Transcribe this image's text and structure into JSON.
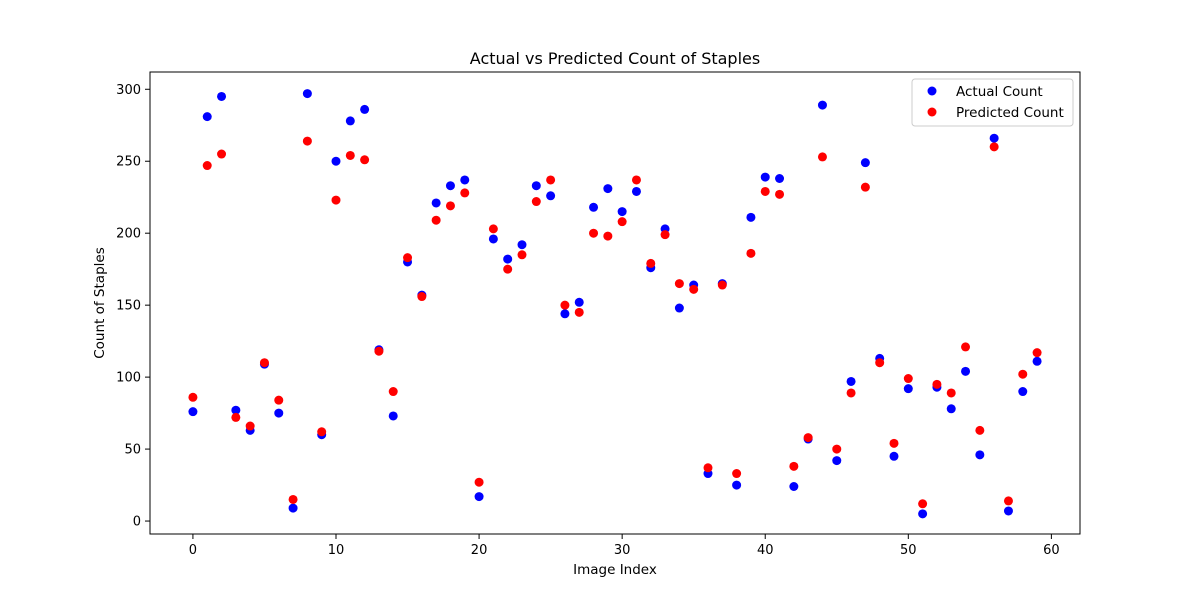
{
  "chart_data": {
    "type": "scatter",
    "title": "Actual vs Predicted Count of Staples",
    "xlabel": "Image Index",
    "ylabel": "Count of Staples",
    "xlim": [
      -3,
      62
    ],
    "ylim": [
      -9,
      312
    ],
    "xticks": [
      0,
      10,
      20,
      30,
      40,
      50,
      60
    ],
    "yticks": [
      0,
      50,
      100,
      150,
      200,
      250,
      300
    ],
    "grid": false,
    "legend_position": "top-right",
    "x": [
      0,
      1,
      2,
      3,
      4,
      5,
      6,
      7,
      8,
      9,
      10,
      11,
      12,
      13,
      14,
      15,
      16,
      17,
      18,
      19,
      20,
      21,
      22,
      23,
      24,
      25,
      26,
      27,
      28,
      29,
      30,
      31,
      32,
      33,
      34,
      35,
      36,
      37,
      38,
      39,
      40,
      41,
      42,
      43,
      44,
      45,
      46,
      47,
      48,
      49,
      50,
      51,
      52,
      53,
      54,
      55,
      56,
      57,
      58,
      59
    ],
    "series": [
      {
        "name": "Actual Count",
        "color": "#0000ff",
        "values": [
          76,
          281,
          295,
          77,
          63,
          109,
          75,
          9,
          297,
          60,
          250,
          278,
          286,
          119,
          73,
          180,
          157,
          221,
          233,
          237,
          17,
          196,
          182,
          192,
          233,
          226,
          144,
          152,
          218,
          231,
          215,
          229,
          176,
          203,
          148,
          164,
          33,
          165,
          25,
          211,
          239,
          238,
          24,
          57,
          289,
          42,
          97,
          249,
          113,
          45,
          92,
          5,
          93,
          78,
          104,
          46,
          266,
          7,
          90,
          111
        ]
      },
      {
        "name": "Predicted Count",
        "color": "#ff0000",
        "values": [
          86,
          247,
          255,
          72,
          66,
          110,
          84,
          15,
          264,
          62,
          223,
          254,
          251,
          118,
          90,
          183,
          156,
          209,
          219,
          228,
          27,
          203,
          175,
          185,
          222,
          237,
          150,
          145,
          200,
          198,
          208,
          237,
          179,
          199,
          165,
          161,
          37,
          164,
          33,
          186,
          229,
          227,
          38,
          58,
          253,
          50,
          89,
          232,
          110,
          54,
          99,
          12,
          95,
          89,
          121,
          63,
          260,
          14,
          102,
          117
        ]
      }
    ]
  }
}
